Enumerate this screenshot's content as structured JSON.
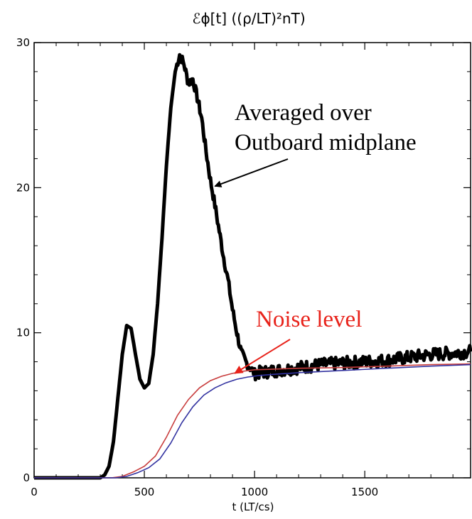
{
  "chart_data": {
    "type": "line",
    "title": "ℰϕ[t] ((ρ/LT)²nT)",
    "xlabel": "t (LT/cs)",
    "ylabel": "",
    "xlim": [
      0,
      1980
    ],
    "ylim": [
      0,
      30
    ],
    "x_ticks": [
      "0",
      "500",
      "1000",
      "1500"
    ],
    "y_ticks": [
      "0",
      "10",
      "20",
      "30"
    ],
    "grid": false,
    "series": [
      {
        "color": "#000000",
        "style": "thick-noisy",
        "x": [
          0,
          300,
          320,
          340,
          360,
          380,
          400,
          420,
          440,
          460,
          480,
          500,
          520,
          540,
          560,
          580,
          600,
          620,
          640,
          660,
          680,
          700,
          720,
          740,
          760,
          780,
          800,
          820,
          840,
          860,
          880,
          900,
          920,
          940,
          960,
          980,
          1000,
          1050,
          1100,
          1200,
          1300,
          1400,
          1500,
          1600,
          1700,
          1800,
          1900,
          1980
        ],
        "y": [
          0,
          0,
          0.2,
          0.8,
          2.5,
          5.5,
          8.5,
          10.5,
          10.3,
          8.5,
          6.8,
          6.2,
          6.5,
          8.5,
          12.0,
          16.5,
          21.5,
          25.5,
          28.0,
          29.2,
          28.5,
          27.2,
          27.5,
          26.2,
          24.8,
          22.5,
          20.5,
          18.8,
          17.0,
          15.2,
          13.6,
          11.6,
          10.0,
          8.6,
          8.0,
          7.6,
          7.2,
          7.3,
          7.4,
          7.6,
          7.8,
          7.9,
          8.0,
          8.1,
          8.3,
          8.5,
          8.6,
          8.7
        ]
      },
      {
        "color": "#c83c3c",
        "style": "thin",
        "x": [
          0,
          350,
          400,
          450,
          500,
          550,
          600,
          650,
          700,
          750,
          800,
          850,
          900,
          950,
          1000,
          1100,
          1200,
          1400,
          1600,
          1800,
          1980
        ],
        "y": [
          0,
          0,
          0.1,
          0.4,
          0.8,
          1.5,
          2.8,
          4.3,
          5.4,
          6.2,
          6.7,
          7.0,
          7.2,
          7.35,
          7.45,
          7.5,
          7.55,
          7.6,
          7.7,
          7.8,
          7.85
        ]
      },
      {
        "color": "#3232a0",
        "style": "thin",
        "x": [
          0,
          370,
          420,
          470,
          520,
          570,
          620,
          670,
          720,
          770,
          820,
          870,
          920,
          970,
          1020,
          1100,
          1200,
          1400,
          1600,
          1800,
          1980
        ],
        "y": [
          0,
          0,
          0.1,
          0.35,
          0.7,
          1.3,
          2.4,
          3.8,
          4.9,
          5.7,
          6.2,
          6.55,
          6.8,
          6.95,
          7.05,
          7.15,
          7.25,
          7.4,
          7.55,
          7.7,
          7.8
        ]
      }
    ],
    "annotations": [
      {
        "lines": [
          "Averaged over",
          "Outboard midplane"
        ],
        "color": "#000000",
        "arrow_to": [
          820,
          20.1
        ]
      },
      {
        "lines": [
          "Noise level"
        ],
        "color": "#e8221a",
        "arrow_to": [
          910,
          7.2
        ]
      }
    ]
  }
}
